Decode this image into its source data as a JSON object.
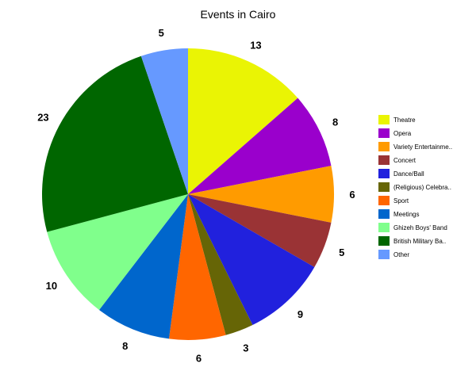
{
  "chart_data": {
    "type": "pie",
    "title": "Events in Cairo",
    "legend_position": "right",
    "start_angle": "top",
    "direction": "clockwise",
    "slices": [
      {
        "label": "Theatre",
        "value": 13,
        "color": "#EAF404"
      },
      {
        "label": "Opera",
        "value": 8,
        "color": "#9A00CC"
      },
      {
        "label": "Variety Entertainme..",
        "value": 6,
        "color": "#FF9B00"
      },
      {
        "label": "Concert",
        "value": 5,
        "color": "#9A3335"
      },
      {
        "label": "Dance/Ball",
        "value": 9,
        "color": "#2121DD"
      },
      {
        "label": "(Religious) Celebra..",
        "value": 3,
        "color": "#666506"
      },
      {
        "label": "Sport",
        "value": 6,
        "color": "#FF6600"
      },
      {
        "label": "Meetings",
        "value": 8,
        "color": "#0066CC"
      },
      {
        "label": "Ghizeh Boys' Band",
        "value": 10,
        "color": "#80FF8C"
      },
      {
        "label": "British Military Ba..",
        "value": 23,
        "color": "#006600"
      },
      {
        "label": "Other",
        "value": 5,
        "color": "#6699FF"
      }
    ]
  }
}
